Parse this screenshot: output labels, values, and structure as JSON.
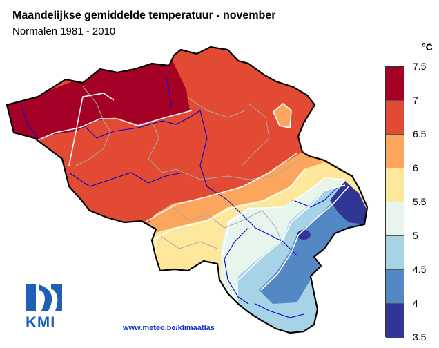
{
  "header": {
    "title": "Maandelijkse gemiddelde temperatuur - november",
    "subtitle": "Normalen 1981 - 2010"
  },
  "legend": {
    "unit": "°C",
    "ticks": [
      "7.5",
      "7",
      "6.5",
      "6",
      "5.5",
      "5",
      "4.5",
      "4",
      "3.5"
    ],
    "colors": [
      "#a50026",
      "#e34a33",
      "#fca65d",
      "#fde79a",
      "#e8f5ec",
      "#a6d3e6",
      "#5488c4",
      "#313695"
    ]
  },
  "footer": {
    "url": "www.meteo.be/klimaatlas",
    "logo_text": "KMI",
    "logo_icon": "kmi-logo-icon"
  }
}
